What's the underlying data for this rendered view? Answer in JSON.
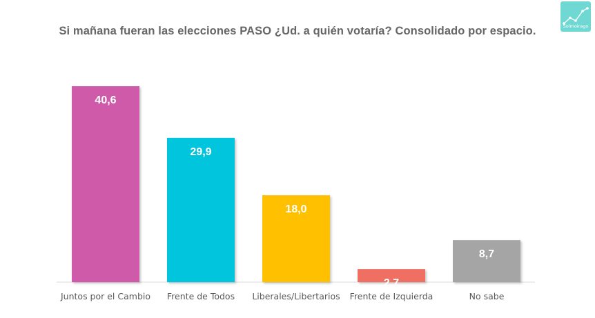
{
  "title": "Si mañana fueran las elecciones PASO ¿Ud. a quién votaría? Consolidado por espacio.",
  "logo": {
    "text": "Solmoirago",
    "icon": "trend-chart-icon",
    "color": "#6fd8d3"
  },
  "chart_data": {
    "type": "bar",
    "title": "Si mañana fueran las elecciones PASO ¿Ud. a quién votaría? Consolidado por espacio.",
    "xlabel": "",
    "ylabel": "",
    "ylim": [
      0,
      42
    ],
    "grid": false,
    "categories": [
      "Juntos por el Cambio",
      "Frente de Todos",
      "Liberales/Libertarios",
      "Frente de Izquierda",
      "No sabe"
    ],
    "values": [
      40.6,
      29.9,
      18.0,
      2.7,
      8.7
    ],
    "value_labels": [
      "40,6",
      "29,9",
      "18,0",
      "2,7",
      "8,7"
    ],
    "colors": [
      "#cf5aaa",
      "#00c5dc",
      "#ffc000",
      "#ef7063",
      "#a5a5a5"
    ]
  }
}
